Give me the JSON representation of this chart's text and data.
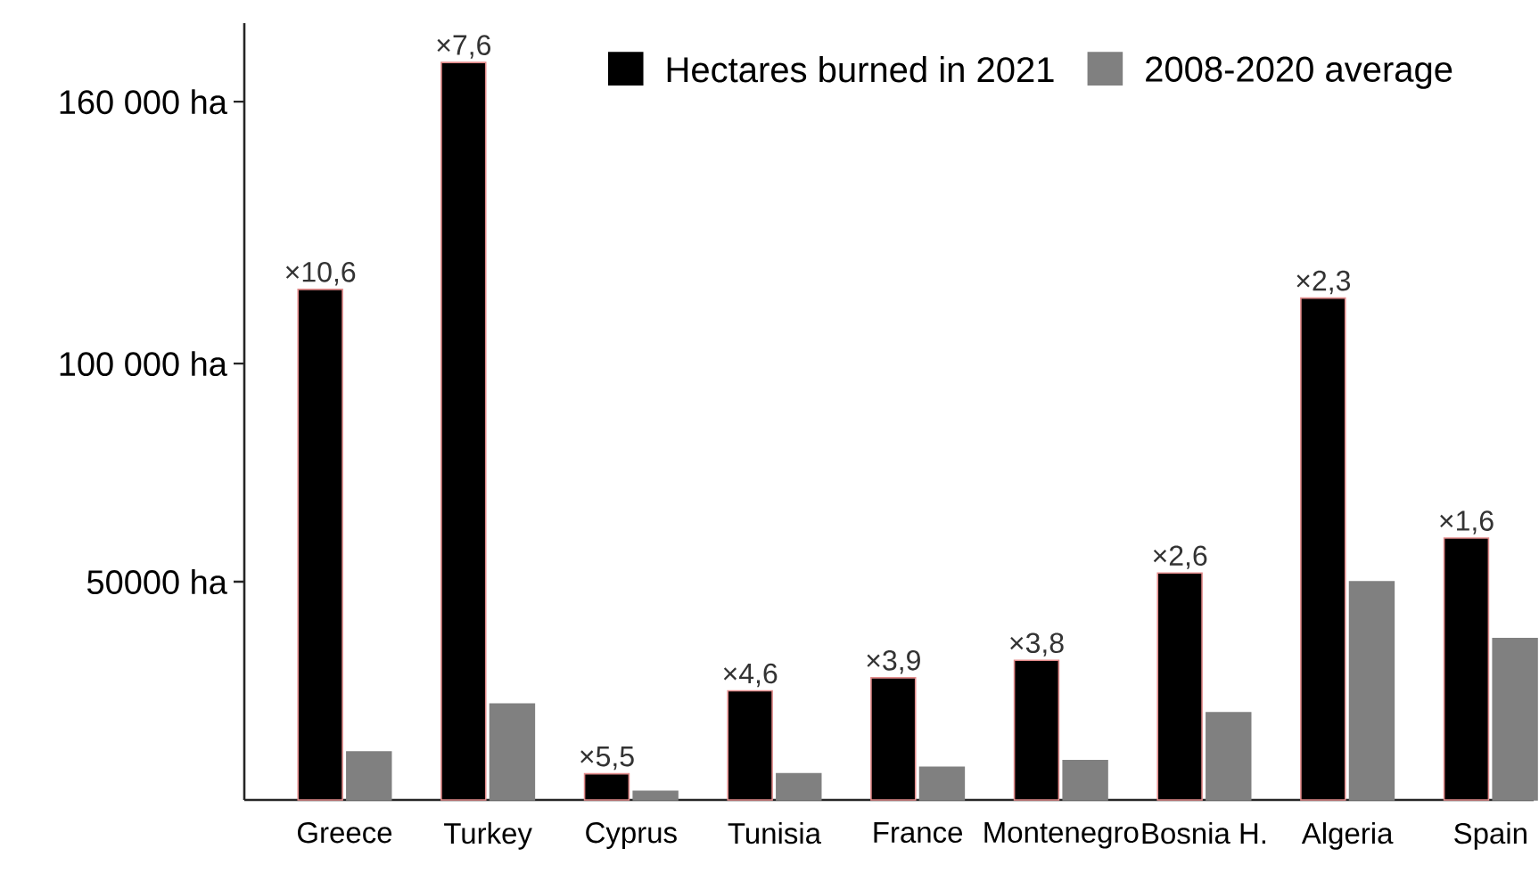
{
  "chart_data": {
    "type": "bar",
    "categories": [
      "Greece",
      "Turkey",
      "Cyprus",
      "Tunisia",
      "France",
      "Montenegro",
      "Bosnia H.",
      "Algeria",
      "Spain"
    ],
    "series": [
      {
        "name": "Hectares burned in 2021",
        "color": "#000000",
        "values": [
          117000,
          169000,
          6000,
          25000,
          28000,
          32000,
          52000,
          115000,
          60000
        ]
      },
      {
        "name": "2008-2020 average",
        "color": "#808080",
        "values": [
          11000,
          22000,
          2000,
          6000,
          7500,
          9000,
          20000,
          50000,
          37000
        ]
      }
    ],
    "ylim": [
      0,
      178000
    ],
    "yticks": [
      {
        "value": 50000,
        "label": "50000 ha"
      },
      {
        "value": 100000,
        "label": "100 000 ha"
      },
      {
        "value": 160000,
        "label": "160 000 ha"
      }
    ],
    "legend": "top right",
    "annotations": [
      {
        "text": "×10,6",
        "x": "Greece",
        "y": 117000
      },
      {
        "text": "×7,6",
        "x": "Turkey",
        "y": 169000
      },
      {
        "text": "×5,5",
        "x": "Cyprus",
        "y": 6000
      },
      {
        "text": "×4,6",
        "x": "Tunisia",
        "y": 25000
      },
      {
        "text": "×3,9",
        "x": "France",
        "y": 28000
      },
      {
        "text": "×3,8",
        "x": "Montenegro",
        "y": 32000
      },
      {
        "text": "×2,6",
        "x": "Bosnia H.",
        "y": 52000
      },
      {
        "text": "×2,3",
        "x": "Algeria",
        "y": 115000
      },
      {
        "text": "×1,6",
        "x": "Spain",
        "y": 60000
      }
    ]
  }
}
